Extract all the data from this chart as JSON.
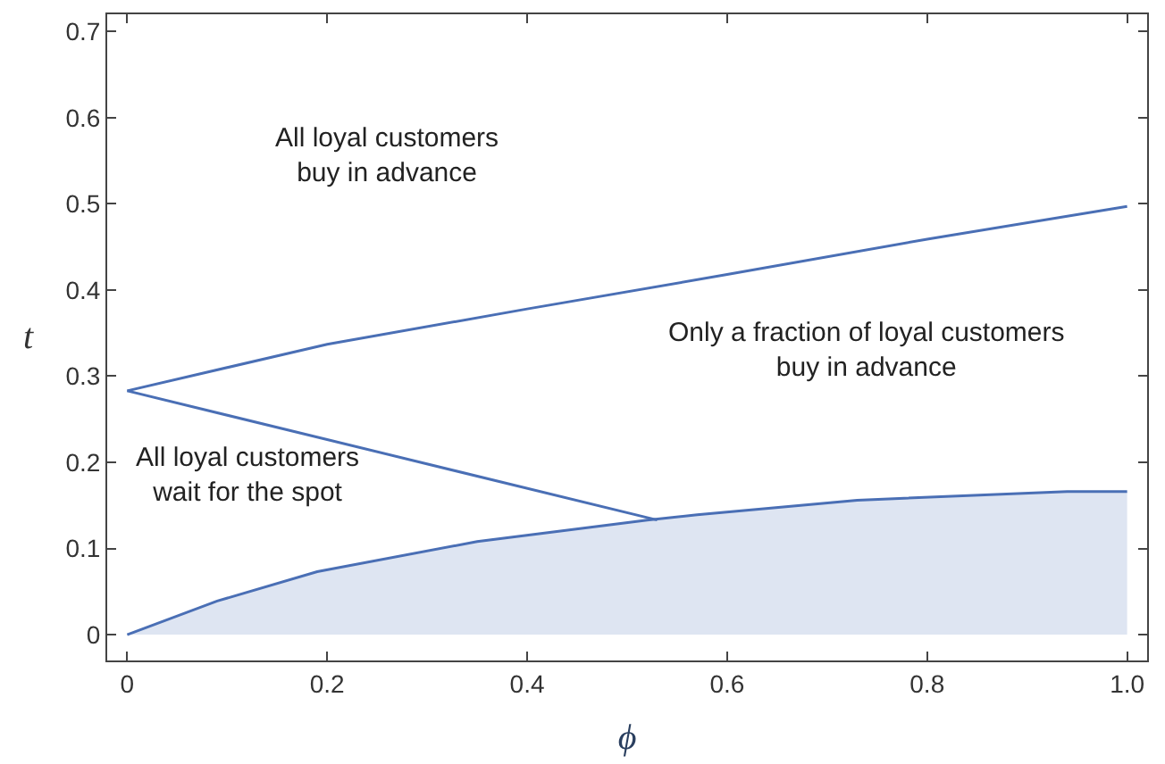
{
  "chart_data": {
    "type": "line",
    "xlabel": "ϕ",
    "ylabel": "t",
    "series": [
      {
        "color": "#4a6fb5",
        "x": [
          0,
          0.2,
          0.4,
          0.6,
          0.8,
          1.0
        ],
        "values": [
          0.283,
          0.337,
          0.378,
          0.418,
          0.459,
          0.497
        ]
      },
      {
        "color": "#4a6fb5",
        "x": [
          0,
          0.53
        ],
        "values": [
          0.283,
          0.133
        ]
      },
      {
        "type": "area",
        "color": "#4a6fb5",
        "x": [
          0,
          0.09,
          0.19,
          0.35,
          0.52,
          0.57,
          0.73,
          0.94,
          1.0
        ],
        "values": [
          0,
          0.039,
          0.073,
          0.108,
          0.133,
          0.139,
          0.156,
          0.166,
          0.166
        ]
      }
    ],
    "annotations": [
      "All loyal customers\nbuy in advance",
      "Only a fraction of loyal customers\nbuy in advance",
      "All loyal customers\nwait for the spot"
    ],
    "xlim": [
      -0.02,
      1.02
    ],
    "ylim": [
      -0.03,
      0.72
    ],
    "xticks": [
      0,
      0.2,
      0.4,
      0.6,
      0.8,
      {
        "value": 1,
        "label": "1.0"
      }
    ],
    "yticks": [
      0,
      0.1,
      0.2,
      0.3,
      0.4,
      0.5,
      0.6,
      0.7
    ],
    "marker": "none",
    "line_style": "solid"
  }
}
